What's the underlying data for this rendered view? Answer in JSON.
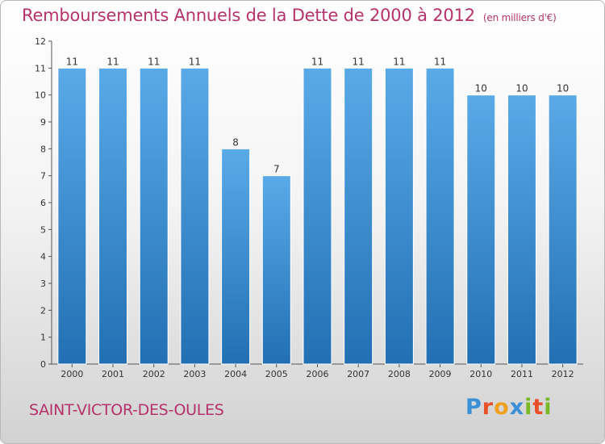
{
  "page": {
    "title": "Remboursements Annuels de la Dette de 2000 à 2012",
    "unit": "(en milliers d'€)",
    "commune": "SAINT-VICTOR-DES-OULES",
    "logo": {
      "letters": [
        "P",
        "r",
        "o",
        "x",
        "i",
        "t",
        "i"
      ],
      "colors": [
        "#3b8fd6",
        "#e8502a",
        "#f0a020",
        "#3b8fd6",
        "#7bb825",
        "#e8502a",
        "#7bb825"
      ]
    }
  },
  "chart_data": {
    "type": "bar",
    "title": "Remboursements Annuels de la Dette de 2000 à 2012",
    "xlabel": "",
    "ylabel": "",
    "categories": [
      "2000",
      "2001",
      "2002",
      "2003",
      "2004",
      "2005",
      "2006",
      "2007",
      "2008",
      "2009",
      "2010",
      "2011",
      "2012"
    ],
    "values": [
      11,
      11,
      11,
      11,
      8,
      7,
      11,
      11,
      11,
      11,
      10,
      10,
      10
    ],
    "data_labels": [
      "11",
      "11",
      "11",
      "11",
      "8",
      "7",
      "11",
      "11",
      "11",
      "11",
      "10",
      "10",
      "10"
    ],
    "ylim": [
      0,
      12
    ],
    "yticks": [
      0,
      1,
      2,
      3,
      4,
      5,
      6,
      7,
      8,
      9,
      10,
      11,
      12
    ],
    "grid": false,
    "legend": "none",
    "bar_color_top": "#5aaae8",
    "bar_color_bottom": "#2270b3"
  }
}
